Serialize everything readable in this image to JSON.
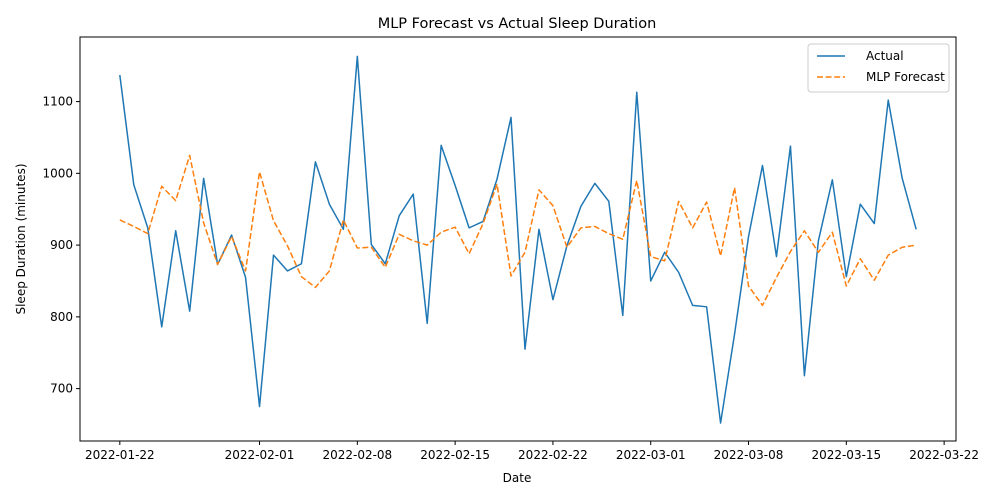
{
  "chart_data": {
    "type": "line",
    "title": "MLP Forecast vs Actual Sleep Duration",
    "xlabel": "Date",
    "ylabel": "Sleep Duration (minutes)",
    "x_start": "2022-01-22",
    "x_ticks": [
      "2022-01-22",
      "2022-02-01",
      "2022-02-08",
      "2022-02-15",
      "2022-02-22",
      "2022-03-01",
      "2022-03-08",
      "2022-03-15",
      "2022-03-22"
    ],
    "y_ticks": [
      700,
      800,
      900,
      1000,
      1100
    ],
    "ylim": [
      627,
      1190
    ],
    "legend_position": "top-right",
    "grid": false,
    "series": [
      {
        "name": "Actual",
        "color": "#1f77b4",
        "dash": "solid",
        "values": [
          1137,
          984,
          924,
          786,
          920,
          808,
          993,
          873,
          914,
          855,
          675,
          886,
          864,
          874,
          1016,
          957,
          922,
          1163,
          901,
          874,
          941,
          971,
          791,
          1039,
          983,
          924,
          933,
          992,
          1078,
          755,
          922,
          824,
          899,
          954,
          986,
          961,
          802,
          1113,
          850,
          890,
          862,
          816,
          814,
          652,
          776,
          912,
          1011,
          884,
          1038,
          718,
          906,
          991,
          856,
          957,
          930,
          1102,
          993,
          922
        ]
      },
      {
        "name": "MLP Forecast",
        "color": "#ff7f0e",
        "dash": "dashed",
        "values": [
          935,
          926,
          916,
          982,
          962,
          1025,
          931,
          873,
          912,
          864,
          1002,
          934,
          899,
          856,
          841,
          864,
          935,
          896,
          897,
          869,
          915,
          906,
          900,
          918,
          925,
          888,
          930,
          985,
          857,
          890,
          977,
          955,
          897,
          924,
          926,
          916,
          908,
          990,
          884,
          878,
          961,
          924,
          960,
          885,
          980,
          843,
          816,
          855,
          891,
          920,
          890,
          918,
          843,
          881,
          851,
          886,
          897,
          900
        ]
      }
    ]
  }
}
